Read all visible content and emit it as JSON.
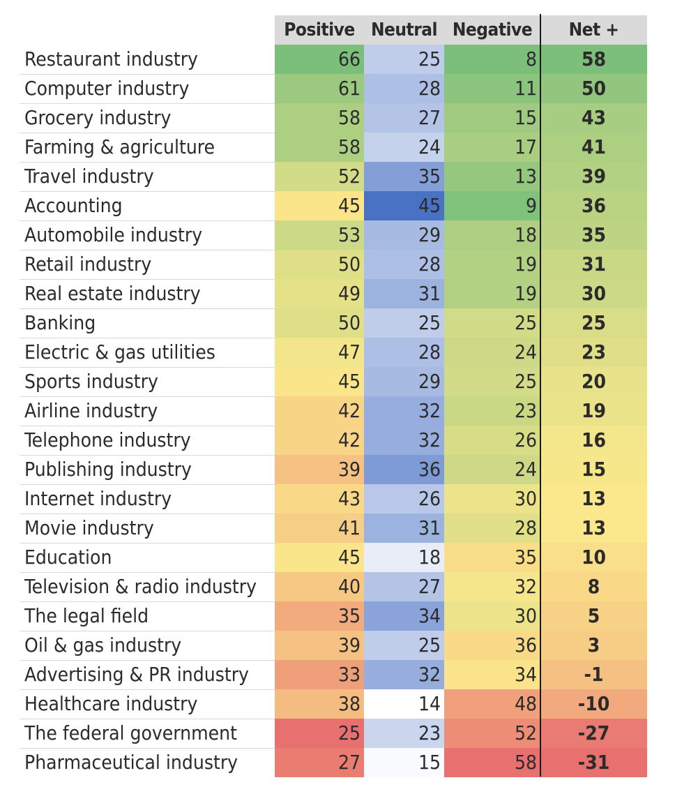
{
  "chart_data": {
    "type": "heatmap",
    "title": "",
    "columns": [
      "Positive",
      "Neutral",
      "Negative",
      "Net +"
    ],
    "rows": [
      {
        "label": "Restaurant industry",
        "values": [
          66,
          25,
          8,
          58
        ]
      },
      {
        "label": "Computer industry",
        "values": [
          61,
          28,
          11,
          50
        ]
      },
      {
        "label": "Grocery industry",
        "values": [
          58,
          27,
          15,
          43
        ]
      },
      {
        "label": "Farming & agriculture",
        "values": [
          58,
          24,
          17,
          41
        ]
      },
      {
        "label": "Travel industry",
        "values": [
          52,
          35,
          13,
          39
        ]
      },
      {
        "label": "Accounting",
        "values": [
          45,
          45,
          9,
          36
        ]
      },
      {
        "label": "Automobile industry",
        "values": [
          53,
          29,
          18,
          35
        ]
      },
      {
        "label": "Retail industry",
        "values": [
          50,
          28,
          19,
          31
        ]
      },
      {
        "label": "Real estate industry",
        "values": [
          49,
          31,
          19,
          30
        ]
      },
      {
        "label": "Banking",
        "values": [
          50,
          25,
          25,
          25
        ]
      },
      {
        "label": "Electric & gas utilities",
        "values": [
          47,
          28,
          24,
          23
        ]
      },
      {
        "label": "Sports industry",
        "values": [
          45,
          29,
          25,
          20
        ]
      },
      {
        "label": "Airline industry",
        "values": [
          42,
          32,
          23,
          19
        ]
      },
      {
        "label": "Telephone industry",
        "values": [
          42,
          32,
          26,
          16
        ]
      },
      {
        "label": "Publishing industry",
        "values": [
          39,
          36,
          24,
          15
        ]
      },
      {
        "label": "Internet industry",
        "values": [
          43,
          26,
          30,
          13
        ]
      },
      {
        "label": "Movie industry",
        "values": [
          41,
          31,
          28,
          13
        ]
      },
      {
        "label": "Education",
        "values": [
          45,
          18,
          35,
          10
        ]
      },
      {
        "label": "Television & radio industry",
        "values": [
          40,
          27,
          32,
          8
        ]
      },
      {
        "label": "The legal field",
        "values": [
          35,
          34,
          30,
          5
        ]
      },
      {
        "label": "Oil & gas industry",
        "values": [
          39,
          25,
          36,
          3
        ]
      },
      {
        "label": "Advertising & PR industry",
        "values": [
          33,
          32,
          34,
          -1
        ]
      },
      {
        "label": "Healthcare industry",
        "values": [
          38,
          14,
          48,
          -10
        ]
      },
      {
        "label": "The federal government",
        "values": [
          25,
          23,
          52,
          -27
        ]
      },
      {
        "label": "Pharmaceutical industry",
        "values": [
          27,
          15,
          58,
          -31
        ]
      }
    ],
    "color_scales": {
      "Positive": {
        "low": "#e8706f",
        "mid": "#fbe88c",
        "high": "#7bbf7b"
      },
      "Neutral": {
        "low": "#ffffff",
        "high": "#4a72c4"
      },
      "Negative": {
        "low": "#7bbf7b",
        "mid": "#fbe88c",
        "high": "#e8706f"
      },
      "Net +": {
        "low": "#e8706f",
        "mid": "#fbe88c",
        "high": "#7bbf7b"
      }
    }
  }
}
